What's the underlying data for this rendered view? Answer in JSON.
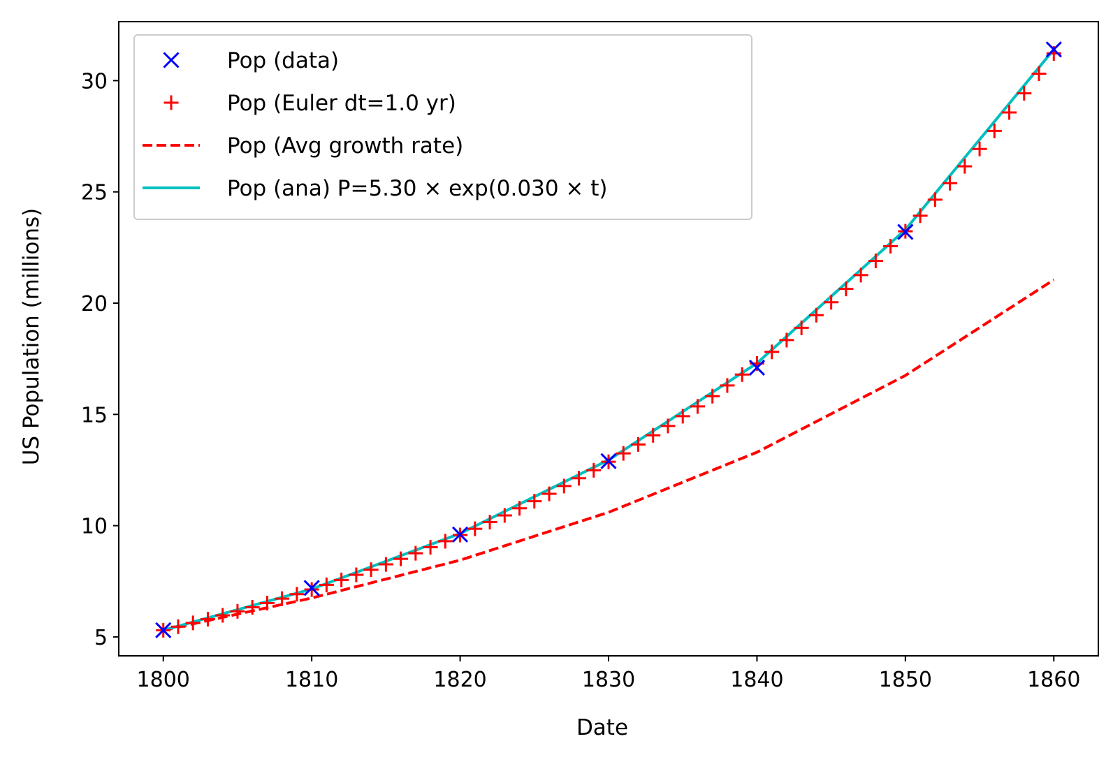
{
  "chart_data": {
    "type": "line",
    "xlabel": "Date",
    "ylabel": "US Population (millions)",
    "xlim": [
      1797,
      1863
    ],
    "ylim": [
      4.15,
      32.65
    ],
    "xticks": [
      1800,
      1810,
      1820,
      1830,
      1840,
      1850,
      1860
    ],
    "yticks": [
      5,
      10,
      15,
      20,
      25,
      30
    ],
    "grid": false,
    "legend_position": "top-left",
    "series": [
      {
        "name": "Pop (data)",
        "style": "marker-x",
        "color": "#0000ff",
        "x": [
          1800,
          1810,
          1820,
          1830,
          1840,
          1850,
          1860
        ],
        "y": [
          5.3,
          7.2,
          9.6,
          12.9,
          17.1,
          23.2,
          31.4
        ]
      },
      {
        "name": "Pop (Euler dt=1.0 yr)",
        "style": "marker-plus",
        "color": "#ff0000",
        "x": [
          1800,
          1801,
          1802,
          1803,
          1804,
          1805,
          1806,
          1807,
          1808,
          1809,
          1810,
          1811,
          1812,
          1813,
          1814,
          1815,
          1816,
          1817,
          1818,
          1819,
          1820,
          1821,
          1822,
          1823,
          1824,
          1825,
          1826,
          1827,
          1828,
          1829,
          1830,
          1831,
          1832,
          1833,
          1834,
          1835,
          1836,
          1837,
          1838,
          1839,
          1840,
          1841,
          1842,
          1843,
          1844,
          1845,
          1846,
          1847,
          1848,
          1849,
          1850,
          1851,
          1852,
          1853,
          1854,
          1855,
          1856,
          1857,
          1858,
          1859,
          1860
        ],
        "y": [
          5.3,
          5.46,
          5.63,
          5.8,
          5.97,
          6.15,
          6.33,
          6.52,
          6.72,
          6.92,
          7.13,
          7.34,
          7.56,
          7.79,
          8.02,
          8.26,
          8.51,
          8.76,
          9.03,
          9.3,
          9.58,
          9.86,
          10.16,
          10.46,
          10.78,
          11.1,
          11.43,
          11.78,
          12.13,
          12.49,
          12.87,
          13.25,
          13.65,
          14.06,
          14.48,
          14.92,
          15.36,
          15.82,
          16.3,
          16.79,
          17.29,
          17.81,
          18.34,
          18.89,
          19.46,
          20.04,
          20.64,
          21.26,
          21.9,
          22.56,
          23.23,
          23.93,
          24.65,
          25.39,
          26.15,
          26.93,
          27.74,
          28.57,
          29.43,
          30.31,
          31.22
        ]
      },
      {
        "name": "Pop (Avg growth rate)",
        "style": "dashed-line",
        "color": "#ff0000",
        "x": [
          1800,
          1810,
          1820,
          1830,
          1840,
          1850,
          1860
        ],
        "y": [
          5.3,
          6.75,
          8.45,
          10.6,
          13.3,
          16.75,
          21.05
        ]
      },
      {
        "name": "Pop (ana) P=5.30 × exp(0.030 × t)",
        "style": "solid-line",
        "color": "#00bfbf",
        "x": [
          1800,
          1810,
          1820,
          1830,
          1840,
          1850,
          1860
        ],
        "y": [
          5.3,
          7.15,
          9.65,
          12.95,
          17.3,
          23.3,
          31.4
        ]
      }
    ]
  }
}
